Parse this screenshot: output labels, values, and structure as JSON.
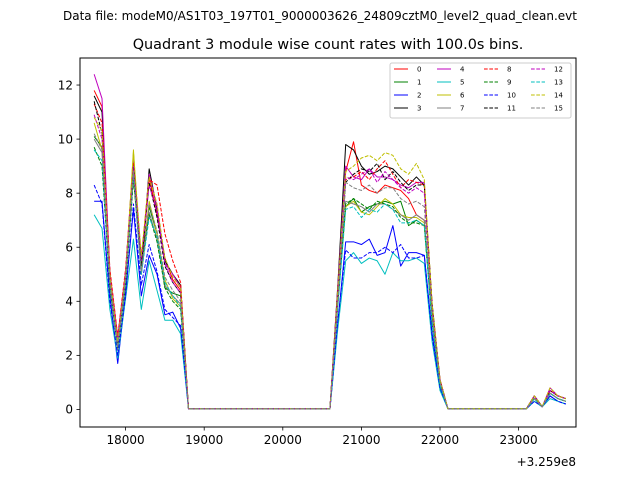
{
  "figure": {
    "suptitle": "Data file: modeM0/AS1T03_197T01_9000003626_24809cztM0_level2_quad_clean.evt"
  },
  "chart_data": {
    "type": "line",
    "title": "Quadrant 3 module wise count rates with 100.0s bins.",
    "xlabel": "",
    "ylabel": "",
    "x_offset_label": "+3.259e8",
    "xlim": [
      17420,
      23730
    ],
    "ylim": [
      -0.65,
      13.0
    ],
    "xticks": [
      18000,
      19000,
      20000,
      21000,
      22000,
      23000
    ],
    "yticks": [
      0,
      2,
      4,
      6,
      8,
      10,
      12
    ],
    "grid": false,
    "legend_position": "top-right",
    "legend_columns": 4,
    "x": [
      17600,
      17700,
      17800,
      17900,
      18000,
      18100,
      18200,
      18300,
      18400,
      18500,
      18600,
      18700,
      18800,
      18900,
      19000,
      19100,
      19200,
      19300,
      19400,
      19500,
      19600,
      19700,
      19800,
      19900,
      20000,
      20100,
      20200,
      20300,
      20400,
      20500,
      20600,
      20700,
      20800,
      20900,
      21000,
      21100,
      21200,
      21300,
      21400,
      21500,
      21600,
      21700,
      21800,
      21900,
      22000,
      22100,
      22200,
      22300,
      22400,
      22500,
      22600,
      22700,
      22800,
      22900,
      23000,
      23100,
      23200,
      23300,
      23400,
      23500,
      23600
    ],
    "series": [
      {
        "name": "0",
        "color": "#ff0000",
        "dash": false,
        "values": [
          11.8,
          11.2,
          5.0,
          2.6,
          5.0,
          9.2,
          5.2,
          8.6,
          7.2,
          5.6,
          4.8,
          4.4,
          0.03,
          0.03,
          0.03,
          0.03,
          0.03,
          0.03,
          0.03,
          0.03,
          0.03,
          0.03,
          0.03,
          0.03,
          0.03,
          0.03,
          0.03,
          0.03,
          0.03,
          0.03,
          0.03,
          4.4,
          8.8,
          9.9,
          8.3,
          8.1,
          8.0,
          8.3,
          8.2,
          8.1,
          7.8,
          7.2,
          7.0,
          3.5,
          1.0,
          0.03,
          0.03,
          0.03,
          0.03,
          0.03,
          0.03,
          0.03,
          0.03,
          0.03,
          0.03,
          0.03,
          0.5,
          0.1,
          0.7,
          0.5,
          0.4
        ]
      },
      {
        "name": "1",
        "color": "#008000",
        "dash": false,
        "values": [
          10.1,
          9.7,
          5.0,
          2.3,
          5.0,
          9.0,
          5.4,
          7.5,
          6.5,
          4.5,
          4.3,
          4.2,
          0.03,
          0.03,
          0.03,
          0.03,
          0.03,
          0.03,
          0.03,
          0.03,
          0.03,
          0.03,
          0.03,
          0.03,
          0.03,
          0.03,
          0.03,
          0.03,
          0.03,
          0.03,
          0.03,
          4.0,
          7.5,
          7.8,
          7.3,
          7.5,
          7.6,
          7.7,
          7.6,
          7.7,
          6.8,
          7.0,
          6.8,
          3.2,
          0.9,
          0.03,
          0.03,
          0.03,
          0.03,
          0.03,
          0.03,
          0.03,
          0.03,
          0.03,
          0.03,
          0.03,
          0.4,
          0.1,
          0.6,
          0.4,
          0.3
        ]
      },
      {
        "name": "2",
        "color": "#0000ff",
        "dash": false,
        "values": [
          7.7,
          7.7,
          4.2,
          1.7,
          4.3,
          7.4,
          4.2,
          5.7,
          5.0,
          3.5,
          3.6,
          3.0,
          0.03,
          0.03,
          0.03,
          0.03,
          0.03,
          0.03,
          0.03,
          0.03,
          0.03,
          0.03,
          0.03,
          0.03,
          0.03,
          0.03,
          0.03,
          0.03,
          0.03,
          0.03,
          0.03,
          3.2,
          6.2,
          6.2,
          6.1,
          6.3,
          5.7,
          5.8,
          6.8,
          5.3,
          5.8,
          5.8,
          5.7,
          2.8,
          0.8,
          0.03,
          0.03,
          0.03,
          0.03,
          0.03,
          0.03,
          0.03,
          0.03,
          0.03,
          0.03,
          0.03,
          0.3,
          0.1,
          0.5,
          0.3,
          0.2
        ]
      },
      {
        "name": "3",
        "color": "#000000",
        "dash": false,
        "values": [
          11.6,
          11.0,
          5.0,
          2.5,
          5.0,
          9.3,
          5.0,
          8.9,
          7.4,
          5.5,
          5.0,
          4.6,
          0.03,
          0.03,
          0.03,
          0.03,
          0.03,
          0.03,
          0.03,
          0.03,
          0.03,
          0.03,
          0.03,
          0.03,
          0.03,
          0.03,
          0.03,
          0.03,
          0.03,
          0.03,
          0.03,
          4.6,
          9.8,
          9.6,
          9.0,
          8.7,
          8.8,
          9.0,
          8.9,
          8.6,
          8.3,
          8.6,
          8.3,
          3.9,
          1.1,
          0.03,
          0.03,
          0.03,
          0.03,
          0.03,
          0.03,
          0.03,
          0.03,
          0.03,
          0.03,
          0.03,
          0.5,
          0.1,
          0.7,
          0.5,
          0.4
        ]
      },
      {
        "name": "4",
        "color": "#bf00bf",
        "dash": false,
        "values": [
          12.4,
          11.5,
          5.1,
          2.7,
          5.1,
          9.4,
          5.5,
          8.7,
          7.5,
          5.4,
          5.0,
          4.5,
          0.03,
          0.03,
          0.03,
          0.03,
          0.03,
          0.03,
          0.03,
          0.03,
          0.03,
          0.03,
          0.03,
          0.03,
          0.03,
          0.03,
          0.03,
          0.03,
          0.03,
          0.03,
          0.03,
          4.5,
          9.0,
          8.6,
          8.5,
          8.9,
          8.6,
          8.6,
          8.5,
          8.3,
          8.2,
          8.4,
          8.4,
          3.8,
          1.1,
          0.03,
          0.03,
          0.03,
          0.03,
          0.03,
          0.03,
          0.03,
          0.03,
          0.03,
          0.03,
          0.03,
          0.5,
          0.1,
          0.8,
          0.5,
          0.4
        ]
      },
      {
        "name": "5",
        "color": "#00bfbf",
        "dash": false,
        "values": [
          7.2,
          6.7,
          3.7,
          1.9,
          4.1,
          6.3,
          3.7,
          5.5,
          4.4,
          3.3,
          3.3,
          2.8,
          0.03,
          0.03,
          0.03,
          0.03,
          0.03,
          0.03,
          0.03,
          0.03,
          0.03,
          0.03,
          0.03,
          0.03,
          0.03,
          0.03,
          0.03,
          0.03,
          0.03,
          0.03,
          0.03,
          3.0,
          5.5,
          5.8,
          5.4,
          5.6,
          5.5,
          5.0,
          5.8,
          5.5,
          5.5,
          5.6,
          5.4,
          2.5,
          0.7,
          0.03,
          0.03,
          0.03,
          0.03,
          0.03,
          0.03,
          0.03,
          0.03,
          0.03,
          0.03,
          0.03,
          0.3,
          0.1,
          0.4,
          0.3,
          0.2
        ]
      },
      {
        "name": "6",
        "color": "#bfbf00",
        "dash": false,
        "values": [
          10.6,
          9.6,
          4.7,
          2.3,
          4.8,
          9.6,
          5.1,
          7.7,
          6.5,
          4.8,
          4.1,
          3.8,
          0.03,
          0.03,
          0.03,
          0.03,
          0.03,
          0.03,
          0.03,
          0.03,
          0.03,
          0.03,
          0.03,
          0.03,
          0.03,
          0.03,
          0.03,
          0.03,
          0.03,
          0.03,
          0.03,
          4.0,
          7.5,
          7.7,
          7.3,
          7.2,
          7.5,
          7.8,
          7.6,
          7.2,
          7.1,
          7.1,
          6.9,
          3.3,
          0.9,
          0.03,
          0.03,
          0.03,
          0.03,
          0.03,
          0.03,
          0.03,
          0.03,
          0.03,
          0.03,
          0.03,
          0.4,
          0.1,
          0.6,
          0.4,
          0.3
        ]
      },
      {
        "name": "7",
        "color": "#808080",
        "dash": false,
        "values": [
          10.0,
          9.5,
          4.5,
          2.2,
          4.6,
          8.6,
          5.0,
          7.3,
          6.3,
          4.6,
          4.2,
          3.9,
          0.03,
          0.03,
          0.03,
          0.03,
          0.03,
          0.03,
          0.03,
          0.03,
          0.03,
          0.03,
          0.03,
          0.03,
          0.03,
          0.03,
          0.03,
          0.03,
          0.03,
          0.03,
          0.03,
          4.0,
          7.7,
          7.6,
          7.5,
          7.3,
          7.6,
          7.6,
          7.4,
          7.2,
          7.0,
          7.2,
          7.0,
          3.3,
          0.9,
          0.03,
          0.03,
          0.03,
          0.03,
          0.03,
          0.03,
          0.03,
          0.03,
          0.03,
          0.03,
          0.03,
          0.4,
          0.1,
          0.6,
          0.4,
          0.3
        ]
      },
      {
        "name": "8",
        "color": "#ff0000",
        "dash": true,
        "values": [
          11.3,
          10.6,
          5.2,
          2.7,
          5.2,
          9.1,
          5.6,
          8.5,
          8.3,
          6.5,
          5.5,
          4.7,
          0.03,
          0.03,
          0.03,
          0.03,
          0.03,
          0.03,
          0.03,
          0.03,
          0.03,
          0.03,
          0.03,
          0.03,
          0.03,
          0.03,
          0.03,
          0.03,
          0.03,
          0.03,
          0.03,
          4.4,
          8.5,
          8.6,
          8.8,
          8.5,
          8.9,
          9.2,
          8.7,
          8.2,
          8.5,
          8.4,
          8.3,
          3.8,
          1.1,
          0.03,
          0.03,
          0.03,
          0.03,
          0.03,
          0.03,
          0.03,
          0.03,
          0.03,
          0.03,
          0.03,
          0.5,
          0.1,
          0.7,
          0.5,
          0.4
        ]
      },
      {
        "name": "9",
        "color": "#008000",
        "dash": true,
        "values": [
          9.7,
          9.0,
          4.5,
          2.3,
          4.6,
          8.5,
          5.4,
          7.2,
          6.2,
          4.5,
          4.0,
          3.7,
          0.03,
          0.03,
          0.03,
          0.03,
          0.03,
          0.03,
          0.03,
          0.03,
          0.03,
          0.03,
          0.03,
          0.03,
          0.03,
          0.03,
          0.03,
          0.03,
          0.03,
          0.03,
          0.03,
          3.9,
          7.6,
          7.8,
          7.6,
          7.4,
          7.7,
          7.6,
          7.5,
          7.1,
          6.9,
          6.9,
          6.8,
          3.2,
          0.9,
          0.03,
          0.03,
          0.03,
          0.03,
          0.03,
          0.03,
          0.03,
          0.03,
          0.03,
          0.03,
          0.03,
          0.4,
          0.1,
          0.6,
          0.4,
          0.3
        ]
      },
      {
        "name": "10",
        "color": "#0000ff",
        "dash": true,
        "values": [
          8.3,
          7.6,
          4.0,
          2.0,
          4.2,
          7.6,
          4.6,
          6.1,
          5.1,
          3.7,
          3.4,
          3.1,
          0.03,
          0.03,
          0.03,
          0.03,
          0.03,
          0.03,
          0.03,
          0.03,
          0.03,
          0.03,
          0.03,
          0.03,
          0.03,
          0.03,
          0.03,
          0.03,
          0.03,
          0.03,
          0.03,
          3.3,
          5.9,
          5.6,
          5.6,
          5.8,
          5.8,
          6.0,
          5.8,
          6.1,
          5.6,
          5.6,
          5.7,
          2.7,
          0.8,
          0.03,
          0.03,
          0.03,
          0.03,
          0.03,
          0.03,
          0.03,
          0.03,
          0.03,
          0.03,
          0.03,
          0.3,
          0.1,
          0.5,
          0.3,
          0.2
        ]
      },
      {
        "name": "11",
        "color": "#000000",
        "dash": true,
        "values": [
          11.4,
          10.2,
          4.8,
          2.4,
          4.9,
          9.0,
          5.3,
          8.4,
          7.1,
          5.3,
          4.7,
          4.3,
          0.03,
          0.03,
          0.03,
          0.03,
          0.03,
          0.03,
          0.03,
          0.03,
          0.03,
          0.03,
          0.03,
          0.03,
          0.03,
          0.03,
          0.03,
          0.03,
          0.03,
          0.03,
          0.03,
          4.3,
          8.4,
          8.7,
          8.9,
          8.8,
          9.1,
          8.5,
          8.8,
          8.4,
          8.1,
          8.3,
          8.3,
          3.8,
          1.0,
          0.03,
          0.03,
          0.03,
          0.03,
          0.03,
          0.03,
          0.03,
          0.03,
          0.03,
          0.03,
          0.03,
          0.5,
          0.1,
          0.7,
          0.5,
          0.4
        ]
      },
      {
        "name": "12",
        "color": "#bf00bf",
        "dash": true,
        "values": [
          10.9,
          10.0,
          4.9,
          2.5,
          5.0,
          9.0,
          5.5,
          8.3,
          7.3,
          5.4,
          4.7,
          4.3,
          0.03,
          0.03,
          0.03,
          0.03,
          0.03,
          0.03,
          0.03,
          0.03,
          0.03,
          0.03,
          0.03,
          0.03,
          0.03,
          0.03,
          0.03,
          0.03,
          0.03,
          0.03,
          0.03,
          4.2,
          8.6,
          8.5,
          8.7,
          8.9,
          8.4,
          8.8,
          8.5,
          8.2,
          8.0,
          8.2,
          8.0,
          3.7,
          1.0,
          0.03,
          0.03,
          0.03,
          0.03,
          0.03,
          0.03,
          0.03,
          0.03,
          0.03,
          0.03,
          0.03,
          0.5,
          0.1,
          0.7,
          0.5,
          0.4
        ]
      },
      {
        "name": "13",
        "color": "#00bfbf",
        "dash": true,
        "values": [
          9.6,
          9.2,
          4.6,
          2.3,
          4.7,
          8.7,
          5.0,
          7.1,
          6.4,
          4.7,
          4.2,
          3.8,
          0.03,
          0.03,
          0.03,
          0.03,
          0.03,
          0.03,
          0.03,
          0.03,
          0.03,
          0.03,
          0.03,
          0.03,
          0.03,
          0.03,
          0.03,
          0.03,
          0.03,
          0.03,
          0.03,
          3.8,
          7.4,
          7.5,
          7.1,
          7.4,
          7.3,
          7.6,
          7.4,
          6.9,
          6.9,
          7.0,
          6.8,
          3.2,
          0.9,
          0.03,
          0.03,
          0.03,
          0.03,
          0.03,
          0.03,
          0.03,
          0.03,
          0.03,
          0.03,
          0.03,
          0.4,
          0.1,
          0.6,
          0.4,
          0.3
        ]
      },
      {
        "name": "14",
        "color": "#bfbf00",
        "dash": true,
        "values": [
          10.8,
          10.3,
          5.0,
          2.5,
          5.0,
          9.5,
          5.7,
          8.6,
          7.6,
          5.6,
          4.9,
          4.5,
          0.03,
          0.03,
          0.03,
          0.03,
          0.03,
          0.03,
          0.03,
          0.03,
          0.03,
          0.03,
          0.03,
          0.03,
          0.03,
          0.03,
          0.03,
          0.03,
          0.03,
          0.03,
          0.03,
          4.4,
          8.8,
          9.0,
          9.3,
          9.4,
          9.2,
          9.5,
          9.4,
          8.9,
          8.7,
          9.1,
          8.5,
          3.9,
          1.1,
          0.03,
          0.03,
          0.03,
          0.03,
          0.03,
          0.03,
          0.03,
          0.03,
          0.03,
          0.03,
          0.03,
          0.5,
          0.1,
          0.8,
          0.5,
          0.4
        ]
      },
      {
        "name": "15",
        "color": "#808080",
        "dash": true,
        "values": [
          10.2,
          9.6,
          4.7,
          2.3,
          4.8,
          8.8,
          5.1,
          7.6,
          6.6,
          4.9,
          4.4,
          4.0,
          0.03,
          0.03,
          0.03,
          0.03,
          0.03,
          0.03,
          0.03,
          0.03,
          0.03,
          0.03,
          0.03,
          0.03,
          0.03,
          0.03,
          0.03,
          0.03,
          0.03,
          0.03,
          0.03,
          4.0,
          8.4,
          8.2,
          8.1,
          8.3,
          8.0,
          8.2,
          8.2,
          7.8,
          7.6,
          7.7,
          7.5,
          3.5,
          1.0,
          0.03,
          0.03,
          0.03,
          0.03,
          0.03,
          0.03,
          0.03,
          0.03,
          0.03,
          0.03,
          0.03,
          0.4,
          0.1,
          0.6,
          0.4,
          0.3
        ]
      }
    ]
  }
}
